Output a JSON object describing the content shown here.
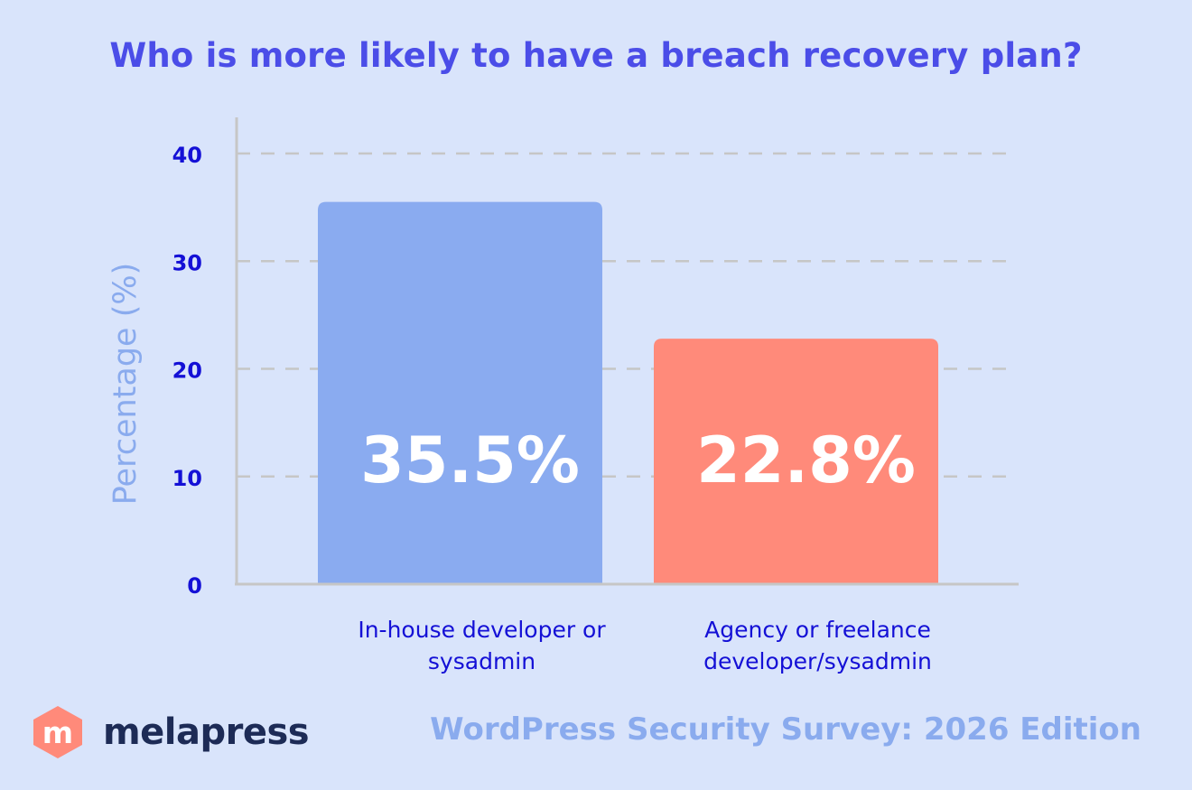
{
  "chart_data": {
    "type": "bar",
    "title": "Who is more likely to have a breach recovery plan?",
    "ylabel": "Percentage (%)",
    "xlabel": "",
    "categories": [
      [
        "In-house developer or",
        "sysadmin"
      ],
      [
        "Agency or freelance",
        "developer/sysadmin"
      ]
    ],
    "values": [
      35.5,
      22.8
    ],
    "value_labels": [
      "35.5%",
      "22.8%"
    ],
    "bar_colors": [
      "#8aabf0",
      "#ff8a7a"
    ],
    "ylim": [
      0,
      40
    ],
    "yticks": [
      0,
      10,
      20,
      30,
      40
    ],
    "grid": true
  },
  "footer": {
    "logo_letter": "m",
    "brand_name": "melapress",
    "survey_edition": "WordPress Security Survey: 2026 Edition"
  },
  "colors": {
    "background": "#d9e4fb",
    "title": "#4b4de8",
    "axis_text": "#1410d6",
    "ylabel": "#8aabee",
    "grid": "#c6c6c6",
    "brand_orange": "#ff8a7a",
    "brand_dark": "#1d2b56"
  }
}
